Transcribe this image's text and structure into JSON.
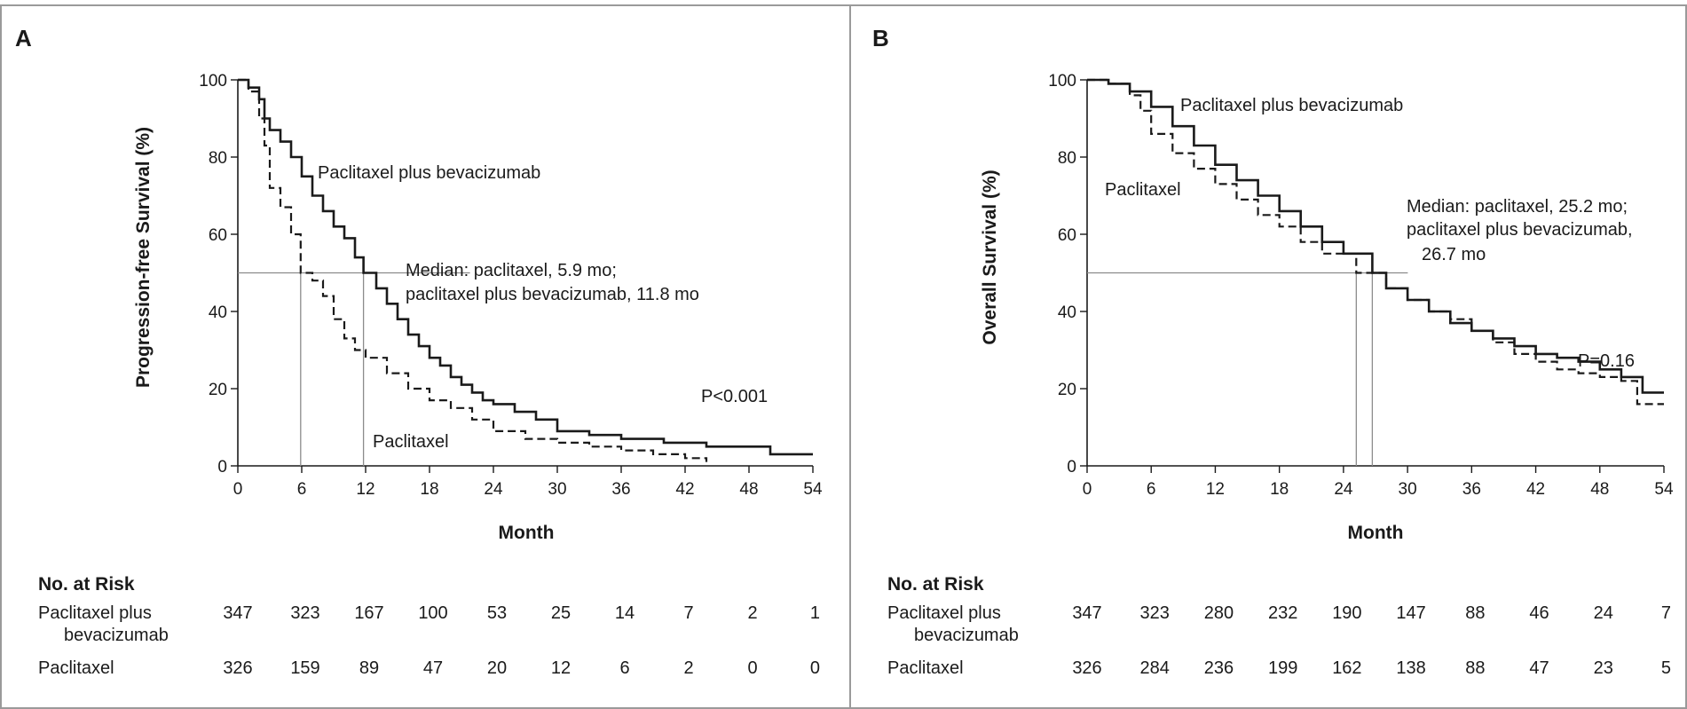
{
  "chart_data": [
    {
      "type": "line",
      "panel_label": "A",
      "ylabel": "Progression-free Survival (%)",
      "xlabel": "Month",
      "xlim": [
        0,
        54
      ],
      "ylim": [
        0,
        100
      ],
      "x_ticks": [
        0,
        6,
        12,
        18,
        24,
        30,
        36,
        42,
        48,
        54
      ],
      "y_ticks": [
        0,
        20,
        40,
        60,
        80,
        100
      ],
      "series": [
        {
          "name": "Paclitaxel plus bevacizumab",
          "style": "solid",
          "color": "#1a1a1a",
          "x": [
            0,
            1,
            2,
            2.5,
            3,
            4,
            5,
            6,
            7,
            8,
            9,
            10,
            11,
            11.8,
            13,
            14,
            15,
            16,
            17,
            18,
            19,
            20,
            21,
            22,
            23,
            24,
            26,
            28,
            30,
            33,
            36,
            40,
            44,
            48,
            50,
            54
          ],
          "y": [
            100,
            98,
            95,
            90,
            87,
            84,
            80,
            75,
            70,
            66,
            62,
            59,
            54,
            50,
            46,
            42,
            38,
            34,
            31,
            28,
            26,
            23,
            21,
            19,
            17,
            16,
            14,
            12,
            9,
            8,
            7,
            6,
            5,
            5,
            3,
            3
          ]
        },
        {
          "name": "Paclitaxel",
          "style": "dashed",
          "color": "#1a1a1a",
          "x": [
            0,
            1,
            2,
            2.5,
            3,
            4,
            5,
            5.9,
            7,
            8,
            9,
            10,
            11,
            12,
            14,
            16,
            18,
            20,
            22,
            24,
            27,
            30,
            33,
            36,
            39,
            42,
            44
          ],
          "y": [
            100,
            97,
            90,
            83,
            72,
            67,
            60,
            50,
            48,
            44,
            38,
            33,
            30,
            28,
            24,
            20,
            17,
            15,
            12,
            9,
            7,
            6,
            5,
            4,
            3,
            2,
            1
          ]
        }
      ],
      "annotations": {
        "series_label_1": "Paclitaxel plus bevacizumab",
        "series_label_2": "Paclitaxel",
        "median_line_1": "Median: paclitaxel, 5.9 mo;",
        "median_line_2": "paclitaxel plus bevacizumab, 11.8 mo",
        "p_value": "P<0.001",
        "medians": [
          5.9,
          11.8
        ]
      },
      "at_risk": {
        "title": "No. at Risk",
        "rows": [
          {
            "label_line1": "Paclitaxel plus",
            "label_line2": "bevacizumab",
            "values": [
              "347",
              "323",
              "167",
              "100",
              "53",
              "25",
              "14",
              "7",
              "2",
              "1"
            ]
          },
          {
            "label_line1": "Paclitaxel",
            "label_line2": "",
            "values": [
              "326",
              "159",
              "89",
              "47",
              "20",
              "12",
              "6",
              "2",
              "0",
              "0"
            ]
          }
        ]
      }
    },
    {
      "type": "line",
      "panel_label": "B",
      "ylabel": "Overall Survival (%)",
      "xlabel": "Month",
      "xlim": [
        0,
        54
      ],
      "ylim": [
        0,
        100
      ],
      "x_ticks": [
        0,
        6,
        12,
        18,
        24,
        30,
        36,
        42,
        48,
        54
      ],
      "y_ticks": [
        0,
        20,
        40,
        60,
        80,
        100
      ],
      "series": [
        {
          "name": "Paclitaxel plus bevacizumab",
          "style": "solid",
          "color": "#1a1a1a",
          "x": [
            0,
            2,
            4,
            6,
            8,
            10,
            12,
            14,
            16,
            18,
            20,
            22,
            24,
            26.7,
            28,
            30,
            32,
            34,
            36,
            38,
            40,
            42,
            44,
            46,
            48,
            50,
            52,
            54
          ],
          "y": [
            100,
            99,
            97,
            93,
            88,
            83,
            78,
            74,
            70,
            66,
            62,
            58,
            55,
            50,
            46,
            43,
            40,
            37,
            35,
            33,
            31,
            29,
            28,
            27,
            25,
            23,
            19,
            19
          ]
        },
        {
          "name": "Paclitaxel",
          "style": "dashed",
          "color": "#1a1a1a",
          "x": [
            0,
            2,
            4,
            5,
            6,
            8,
            10,
            12,
            14,
            16,
            18,
            20,
            22,
            25.2,
            28,
            30,
            32,
            34,
            36,
            38,
            40,
            42,
            44,
            46,
            48,
            50,
            51.5,
            54
          ],
          "y": [
            100,
            99,
            96,
            92,
            86,
            81,
            77,
            73,
            69,
            65,
            62,
            58,
            55,
            50,
            46,
            43,
            40,
            38,
            35,
            32,
            29,
            27,
            25,
            24,
            23,
            22,
            16,
            16
          ]
        }
      ],
      "annotations": {
        "series_label_1": "Paclitaxel plus bevacizumab",
        "series_label_2": "Paclitaxel",
        "median_line_1": "Median: paclitaxel, 25.2 mo;",
        "median_line_2": "paclitaxel plus bevacizumab,",
        "median_line_3": "26.7 mo",
        "p_value": "P=0.16",
        "medians": [
          25.2,
          26.7
        ]
      },
      "at_risk": {
        "title": "No. at Risk",
        "rows": [
          {
            "label_line1": "Paclitaxel plus",
            "label_line2": "bevacizumab",
            "values": [
              "347",
              "323",
              "280",
              "232",
              "190",
              "147",
              "88",
              "46",
              "24",
              "7"
            ]
          },
          {
            "label_line1": "Paclitaxel",
            "label_line2": "",
            "values": [
              "326",
              "284",
              "236",
              "199",
              "162",
              "138",
              "88",
              "47",
              "23",
              "5"
            ]
          }
        ]
      }
    }
  ]
}
